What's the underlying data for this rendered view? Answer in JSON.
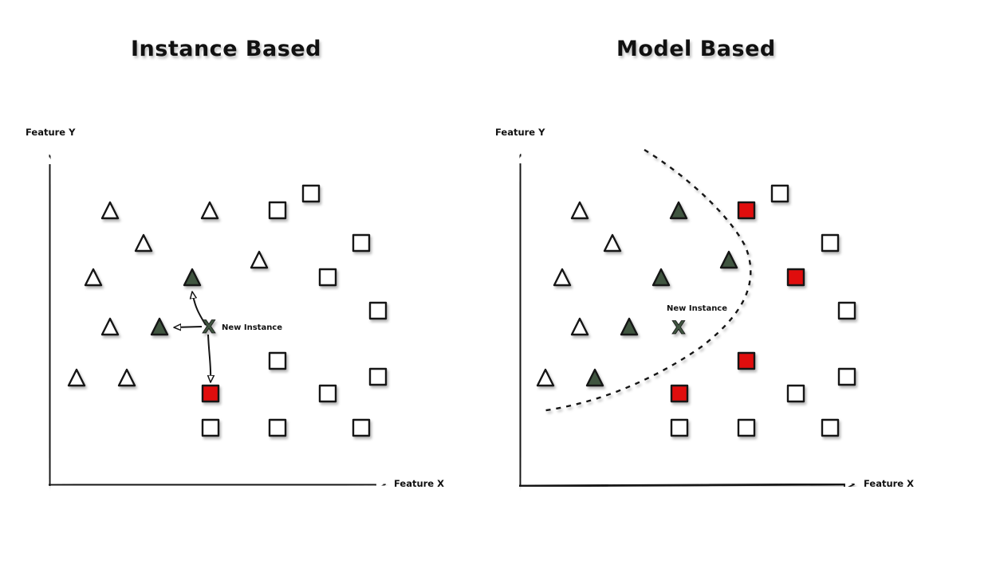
{
  "colors": {
    "ink": "#141414",
    "highlight_triangle": "#3f5441",
    "highlight_square": "#e01010",
    "shadow": "#999999"
  },
  "left_panel": {
    "title": "Instance Based",
    "y_axis_label": "Feature Y",
    "x_axis_label": "Feature X",
    "new_instance_label": "New Instance"
  },
  "right_panel": {
    "title": "Model Based",
    "y_axis_label": "Feature Y",
    "x_axis_label": "Feature X",
    "new_instance_label": "New Instance"
  }
}
